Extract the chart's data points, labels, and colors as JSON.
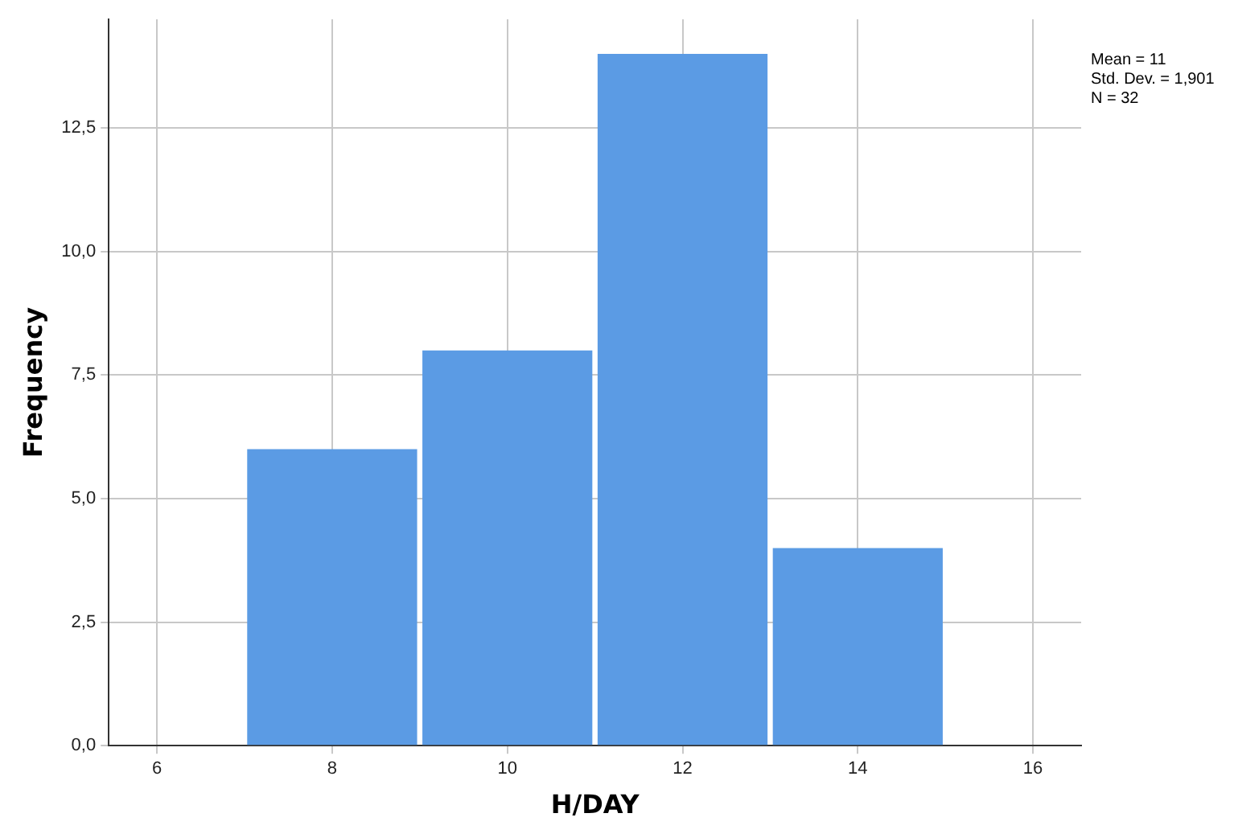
{
  "chart_data": {
    "type": "histogram",
    "xlabel": "H/DAY",
    "ylabel": "Frequency",
    "bins": [
      7,
      9,
      11,
      13,
      15
    ],
    "values": [
      6,
      8,
      14,
      4
    ],
    "color": "#5b9be4",
    "xlim": [
      5.45,
      16.55
    ],
    "xticks": [
      6,
      8,
      10,
      12,
      14,
      16
    ],
    "ylim": [
      0,
      14.7
    ],
    "yticks": [
      {
        "value": 0,
        "label": "0,0"
      },
      {
        "value": 2.5,
        "label": "2,5"
      },
      {
        "value": 5,
        "label": "5,0"
      },
      {
        "value": 7.5,
        "label": "7,5"
      },
      {
        "value": 10,
        "label": "10,0"
      },
      {
        "value": 12.5,
        "label": "12,5"
      }
    ],
    "grid": true,
    "legend": false,
    "annotations": [
      "Mean = 11",
      "Std. Dev. = 1,901",
      "N = 32"
    ]
  }
}
